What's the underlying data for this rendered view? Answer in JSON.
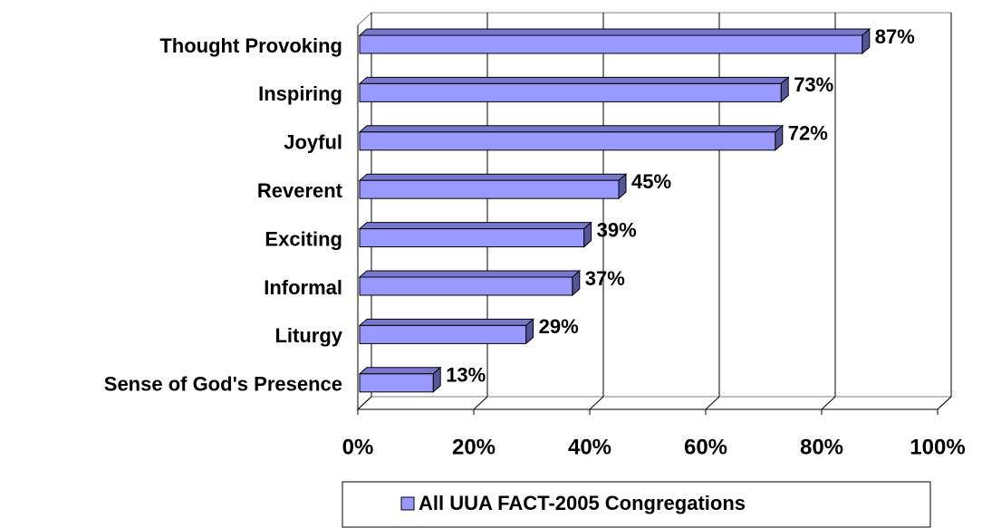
{
  "chart_data": {
    "type": "bar",
    "orientation": "horizontal",
    "categories": [
      "Thought Provoking",
      "Inspiring",
      "Joyful",
      "Reverent",
      "Exciting",
      "Informal",
      "Liturgy",
      "Sense of God's Presence"
    ],
    "series": [
      {
        "name": "All UUA FACT-2005 Congregations",
        "color": "#9999ff",
        "values": [
          87,
          73,
          72,
          45,
          39,
          37,
          29,
          13
        ],
        "value_labels": [
          "87%",
          "73%",
          "72%",
          "45%",
          "39%",
          "37%",
          "29%",
          "13%"
        ]
      }
    ],
    "xlim": [
      0,
      100
    ],
    "xticks": [
      {
        "value": 0,
        "label": "0%"
      },
      {
        "value": 20,
        "label": "20%"
      },
      {
        "value": 40,
        "label": "40%"
      },
      {
        "value": 60,
        "label": "60%"
      },
      {
        "value": 80,
        "label": "80%"
      },
      {
        "value": 100,
        "label": "100%"
      }
    ],
    "grid": true,
    "legend": "bottom"
  }
}
